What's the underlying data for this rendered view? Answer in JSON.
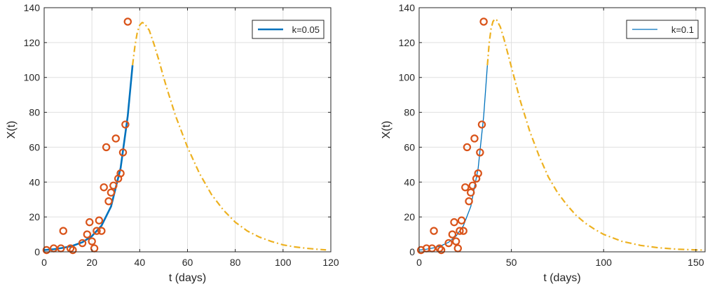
{
  "chart_data": [
    {
      "type": "line",
      "xlabel": "t (days)",
      "ylabel": "X(t)",
      "xlim": [
        0,
        120
      ],
      "ylim": [
        0,
        140
      ],
      "xticks": [
        0,
        20,
        40,
        60,
        80,
        100,
        120
      ],
      "yticks": [
        0,
        20,
        40,
        60,
        80,
        100,
        120,
        140
      ],
      "grid": true,
      "legend": {
        "location": "top-right",
        "label": "k=0.05"
      },
      "series": [
        {
          "name": "k=0.05",
          "style": "solid",
          "color": "#0072BD",
          "x": [
            0,
            4,
            8,
            12,
            16,
            20,
            24,
            28,
            32,
            35,
            37
          ],
          "y": [
            1,
            1.5,
            2.3,
            3.5,
            5.5,
            9,
            15,
            26,
            48,
            78,
            107
          ]
        },
        {
          "style": "dash-dot",
          "color": "#EDB120",
          "x": [
            37,
            38,
            39,
            40,
            41,
            42,
            44,
            46,
            48,
            50,
            52,
            55,
            60,
            65,
            70,
            75,
            80,
            85,
            90,
            95,
            100,
            105,
            110,
            115,
            118
          ],
          "y": [
            107,
            118,
            126,
            130,
            131.5,
            131,
            127,
            119,
            110,
            100,
            91,
            78,
            60,
            45,
            33,
            24,
            17,
            12,
            8.5,
            6,
            4,
            2.8,
            2,
            1.4,
            1.1
          ]
        },
        {
          "type": "scatter",
          "marker": "circle",
          "color": "#D95319",
          "x": [
            1,
            4,
            7,
            8,
            11,
            12,
            16,
            18,
            19,
            20,
            21,
            22,
            23,
            24,
            25,
            26,
            27,
            28,
            29,
            30,
            31,
            32,
            33,
            34,
            35
          ],
          "y": [
            1,
            2,
            2,
            12,
            2,
            1,
            5,
            10,
            17,
            6,
            2,
            12,
            18,
            12,
            37,
            60,
            29,
            34,
            38,
            65,
            42,
            45,
            57,
            73,
            132
          ]
        }
      ]
    },
    {
      "type": "line",
      "xlabel": "t (days)",
      "ylabel": "X(t)",
      "xlim": [
        0,
        155
      ],
      "ylim": [
        0,
        140
      ],
      "xticks": [
        0,
        50,
        100,
        150
      ],
      "yticks": [
        0,
        20,
        40,
        60,
        80,
        100,
        120,
        140
      ],
      "grid": true,
      "legend": {
        "location": "top-right",
        "label": "k=0.1"
      },
      "series": [
        {
          "name": "k=0.1",
          "style": "solid",
          "color": "#0072BD",
          "x": [
            0,
            4,
            8,
            12,
            16,
            20,
            24,
            28,
            32,
            35,
            37
          ],
          "y": [
            1,
            1.5,
            2.3,
            3.5,
            5.5,
            9,
            15,
            26,
            48,
            78,
            107
          ]
        },
        {
          "style": "dash-dot",
          "color": "#EDB120",
          "x": [
            37,
            38,
            39,
            40,
            41,
            42,
            44,
            46,
            48,
            50,
            52,
            55,
            60,
            65,
            70,
            75,
            80,
            85,
            90,
            95,
            100,
            110,
            120,
            130,
            140,
            150,
            155
          ],
          "y": [
            107,
            120,
            128,
            132,
            133.5,
            133,
            129,
            122,
            114,
            106,
            98,
            86,
            69,
            55,
            43,
            34,
            27,
            21,
            16.5,
            13,
            10,
            6,
            3.7,
            2.3,
            1.5,
            1.1,
            1
          ]
        },
        {
          "type": "scatter",
          "marker": "circle",
          "color": "#D95319",
          "x": [
            1,
            4,
            7,
            8,
            11,
            12,
            16,
            18,
            19,
            20,
            21,
            22,
            23,
            24,
            25,
            26,
            27,
            28,
            29,
            30,
            31,
            32,
            33,
            34,
            35
          ],
          "y": [
            1,
            2,
            2,
            12,
            2,
            1,
            5,
            10,
            17,
            6,
            2,
            12,
            18,
            12,
            37,
            60,
            29,
            34,
            38,
            65,
            42,
            45,
            57,
            73,
            132
          ]
        }
      ]
    }
  ]
}
